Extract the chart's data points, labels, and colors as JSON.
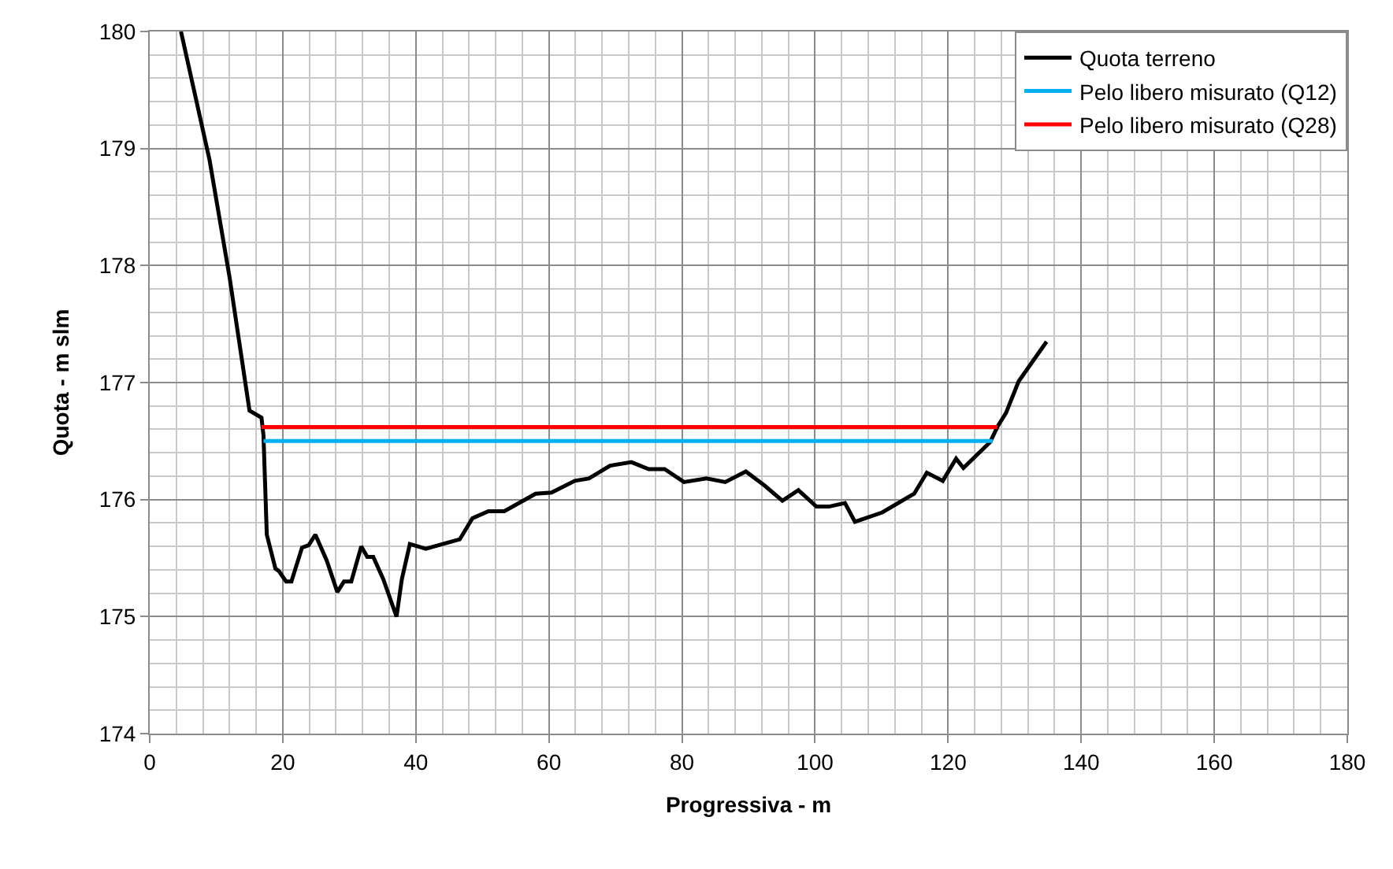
{
  "chart_data": {
    "type": "line",
    "xlabel": "Progressiva - m",
    "ylabel": "Quota - m slm",
    "xlim": [
      0,
      180
    ],
    "xticks": [
      0,
      20,
      40,
      60,
      80,
      100,
      120,
      140,
      160,
      180
    ],
    "ylim": [
      174,
      180
    ],
    "yticks": [
      174,
      175,
      176,
      177,
      178,
      179,
      180
    ],
    "grid": true,
    "legend": "top right",
    "marker": "none",
    "line_style": "solid",
    "series": [
      {
        "name": "Quota terreno",
        "color": "#000000",
        "x": [
          4.7,
          9,
          12,
          15.0,
          16.8,
          17.1,
          17.6,
          18.9,
          19.4,
          20.5,
          21.3,
          22.9,
          23.9,
          24.9,
          26.6,
          28.2,
          29.2,
          30.3,
          31.8,
          32.7,
          33.6,
          35.1,
          37.1,
          37.9,
          39.1,
          41.5,
          46.6,
          48.5,
          50.9,
          53.3,
          58.0,
          60.4,
          63.9,
          66.0,
          69.2,
          72.4,
          75.0,
          77.4,
          80.3,
          83.7,
          86.5,
          89.6,
          92.4,
          95.1,
          97.5,
          100.2,
          102.1,
          104.5,
          106.0,
          110.1,
          114.9,
          116.8,
          119.2,
          121.2,
          122.3,
          126.3,
          127.5,
          128.7,
          130.6,
          134.8
        ],
        "values": [
          180.0,
          178.9,
          177.9,
          176.76,
          176.7,
          176.55,
          175.7,
          175.41,
          175.39,
          175.3,
          175.3,
          175.59,
          175.61,
          175.7,
          175.48,
          175.21,
          175.3,
          175.3,
          175.6,
          175.51,
          175.51,
          175.32,
          175.0,
          175.32,
          175.62,
          175.58,
          175.66,
          175.84,
          175.9,
          175.9,
          176.05,
          176.06,
          176.16,
          176.18,
          176.29,
          176.32,
          176.26,
          176.26,
          176.15,
          176.18,
          176.15,
          176.24,
          176.12,
          175.99,
          176.08,
          175.94,
          175.94,
          175.97,
          175.81,
          175.89,
          176.05,
          176.23,
          176.16,
          176.35,
          176.27,
          176.49,
          176.63,
          176.74,
          177.01,
          177.35
        ]
      },
      {
        "name": "Pelo libero misurato (Q12)",
        "color": "#00b0f0",
        "x": [
          17.1,
          126.7
        ],
        "values": [
          176.5,
          176.5
        ]
      },
      {
        "name": "Pelo libero misurato (Q28)",
        "color": "#ff0000",
        "x": [
          16.8,
          127.4
        ],
        "values": [
          176.62,
          176.62
        ]
      }
    ]
  }
}
